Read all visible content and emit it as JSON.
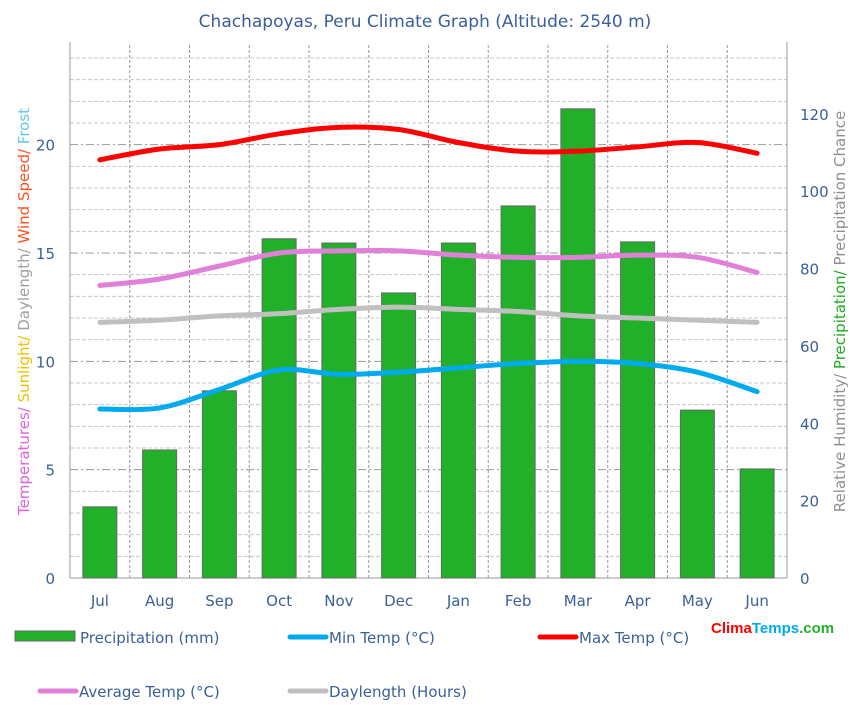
{
  "chart_data": {
    "type": "bar+line",
    "title": "Chachapoyas, Peru Climate Graph (Altitude: 2540 m)",
    "categories": [
      "Jul",
      "Aug",
      "Sep",
      "Oct",
      "Nov",
      "Dec",
      "Jan",
      "Feb",
      "Mar",
      "Apr",
      "May",
      "Jun"
    ],
    "left_axis": {
      "label_parts": [
        {
          "text": "Temperatures/ ",
          "color": "#e060e0"
        },
        {
          "text": "Sunlight/ ",
          "color": "#f0c000"
        },
        {
          "text": "Daylength/ ",
          "color": "#a0a0a0"
        },
        {
          "text": "Wind Speed/ ",
          "color": "#ff5020"
        },
        {
          "text": "Frost",
          "color": "#60c8f0"
        }
      ],
      "ylim": [
        0,
        24.6
      ],
      "ticks": [
        0,
        5,
        10,
        15,
        20
      ]
    },
    "right_axis": {
      "label_parts": [
        {
          "text": "Relative Humidity/ ",
          "color": "#909090"
        },
        {
          "text": "Precipitation/ ",
          "color": "#22aa22"
        },
        {
          "text": "Precipitation Chance",
          "color": "#909090"
        }
      ],
      "ylim": [
        0,
        137.8
      ],
      "ticks": [
        0,
        20,
        40,
        60,
        80,
        100,
        120
      ]
    },
    "grid": true,
    "legend_placement": "bottom",
    "series": [
      {
        "name": "Precipitation (mm)",
        "type": "bar",
        "axis": "right",
        "color": "#22b02a",
        "values": [
          18.4,
          33.1,
          48.4,
          87.7,
          86.6,
          73.7,
          86.6,
          96.2,
          121.3,
          86.9,
          43.4,
          28.2
        ]
      },
      {
        "name": "Min Temp (°C)",
        "type": "line",
        "axis": "left",
        "color": "#00aaee",
        "values": [
          7.8,
          7.85,
          8.7,
          9.6,
          9.4,
          9.5,
          9.7,
          9.9,
          10.0,
          9.9,
          9.5,
          8.6
        ]
      },
      {
        "name": "Max Temp (°C)",
        "type": "line",
        "axis": "left",
        "color": "#ff0000",
        "values": [
          19.3,
          19.8,
          20.0,
          20.5,
          20.8,
          20.7,
          20.1,
          19.7,
          19.7,
          19.9,
          20.1,
          19.6
        ]
      },
      {
        "name": "Average Temp (°C)",
        "type": "line",
        "axis": "left",
        "color": "#e080d8",
        "values": [
          13.5,
          13.8,
          14.4,
          15.0,
          15.1,
          15.1,
          14.9,
          14.8,
          14.8,
          14.9,
          14.8,
          14.1
        ]
      },
      {
        "name": "Daylength (Hours)",
        "type": "line",
        "axis": "left",
        "color": "#c0c0c0",
        "values": [
          11.8,
          11.9,
          12.1,
          12.2,
          12.4,
          12.5,
          12.4,
          12.3,
          12.1,
          12.0,
          11.9,
          11.8
        ]
      }
    ]
  },
  "logo": {
    "parts": [
      {
        "text": "Clima",
        "color": "#ff0000"
      },
      {
        "text": "Temps",
        "color": "#00aaee"
      },
      {
        "text": ".com",
        "color": "#22b02a"
      }
    ]
  }
}
